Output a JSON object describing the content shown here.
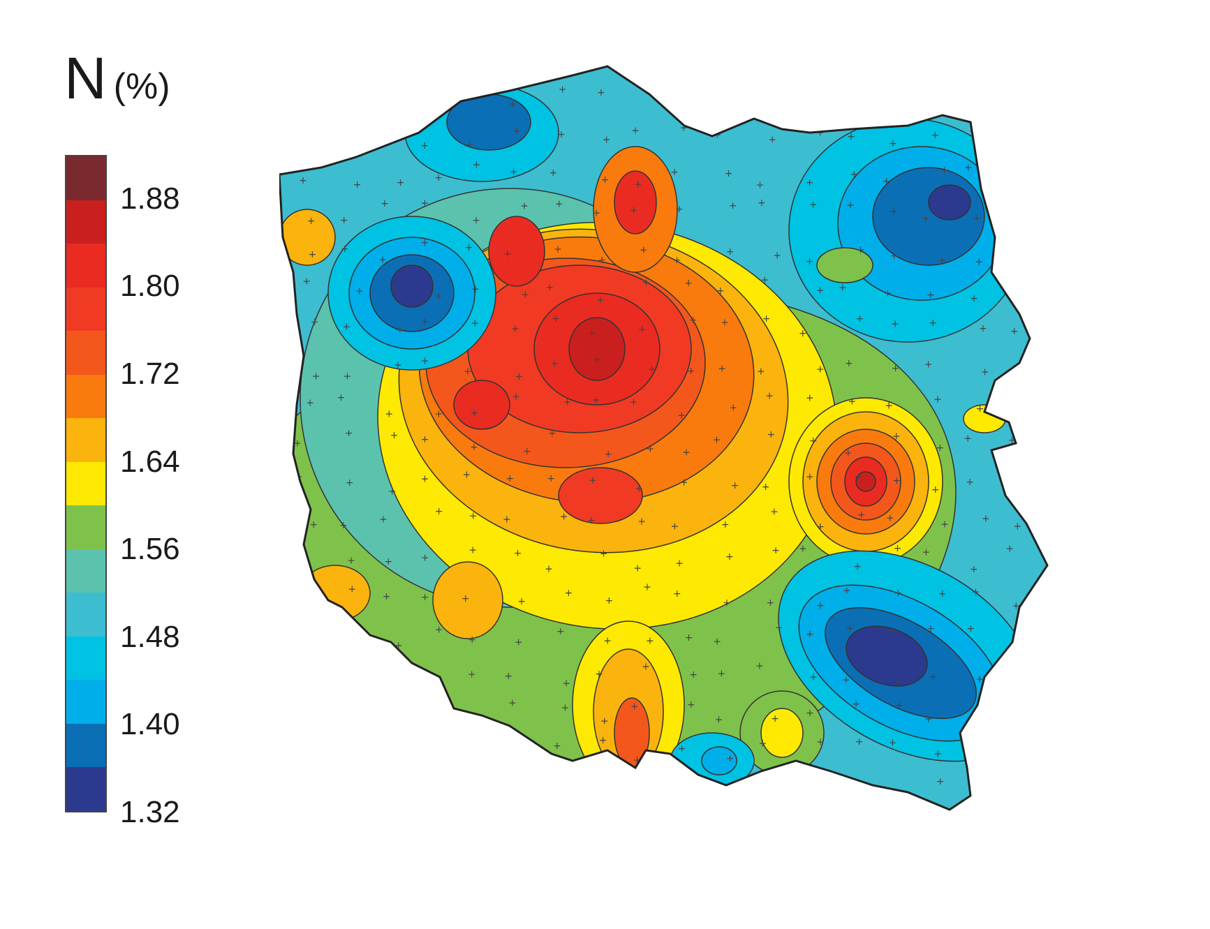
{
  "legend": {
    "title": "N",
    "unit": "(%)",
    "ticks": [
      "1.88",
      "1.80",
      "1.72",
      "1.64",
      "1.56",
      "1.48",
      "1.40",
      "1.32"
    ],
    "min": 1.32,
    "max": 1.92,
    "step": 0.04,
    "colors_top_to_bottom": [
      "#7a2a2e",
      "#c9201f",
      "#ea2b22",
      "#f03a24",
      "#f4571c",
      "#f97b0e",
      "#fbb30d",
      "#fde901",
      "#7fc24b",
      "#5bc2ae",
      "#3dbdd0",
      "#00c2e3",
      "#00aeea",
      "#0b6fb6",
      "#2b3a8e"
    ]
  },
  "map": {
    "country": "Poland",
    "variable": "soil nitrogen content",
    "markers": "plus-sign sample points",
    "hotspots": [
      {
        "area": "central Poland",
        "value_range": "1.80–1.88"
      },
      {
        "area": "east (Lublin upland)",
        "value_range": "1.80–1.88"
      }
    ],
    "lows": [
      {
        "area": "north-west",
        "value_range": "1.32–1.36"
      },
      {
        "area": "north-east",
        "value_range": "1.32–1.36"
      },
      {
        "area": "south-east",
        "value_range": "1.32–1.36"
      }
    ]
  }
}
